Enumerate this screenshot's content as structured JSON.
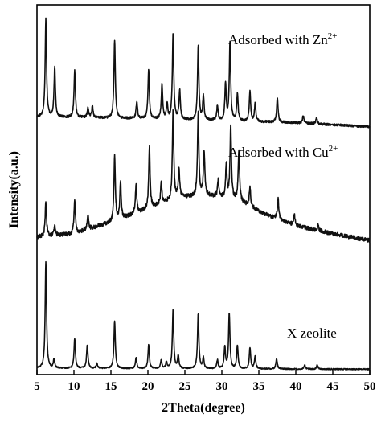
{
  "chart_data": {
    "type": "line",
    "title": "",
    "xlabel": "2Theta(degree)",
    "ylabel": "Intensity(a.u.)",
    "xlim": [
      5,
      50
    ],
    "x_ticks": [
      "5",
      "10",
      "15",
      "20",
      "25",
      "30",
      "35",
      "40",
      "45",
      "50"
    ],
    "y_ticks": [],
    "grid": false,
    "legend": "none",
    "series": [
      {
        "name_parts": [
          "Adsorbed with Zn",
          "2+"
        ],
        "baseline": [
          [
            5,
            0.12
          ],
          [
            20,
            0.1
          ],
          [
            30,
            0.08
          ],
          [
            40,
            0.06
          ],
          [
            50,
            0.02
          ]
        ],
        "peaks": [
          [
            6.2,
            1.0
          ],
          [
            7.4,
            0.5
          ],
          [
            10.1,
            0.48
          ],
          [
            11.9,
            0.1
          ],
          [
            12.5,
            0.12
          ],
          [
            15.5,
            0.8
          ],
          [
            18.5,
            0.18
          ],
          [
            20.1,
            0.5
          ],
          [
            21.9,
            0.35
          ],
          [
            22.6,
            0.15
          ],
          [
            23.4,
            0.88
          ],
          [
            24.3,
            0.3
          ],
          [
            26.8,
            0.75
          ],
          [
            27.5,
            0.25
          ],
          [
            29.4,
            0.15
          ],
          [
            30.5,
            0.38
          ],
          [
            31.1,
            0.8
          ],
          [
            32.1,
            0.28
          ],
          [
            33.8,
            0.3
          ],
          [
            34.5,
            0.18
          ],
          [
            37.5,
            0.25
          ],
          [
            41.0,
            0.08
          ],
          [
            42.8,
            0.06
          ]
        ]
      },
      {
        "name_parts": [
          "Adsorbed with Cu",
          "2+"
        ],
        "baseline": [
          [
            5,
            0.05
          ],
          [
            10,
            0.08
          ],
          [
            15,
            0.18
          ],
          [
            20,
            0.3
          ],
          [
            24,
            0.4
          ],
          [
            28,
            0.42
          ],
          [
            32,
            0.38
          ],
          [
            36,
            0.25
          ],
          [
            40,
            0.15
          ],
          [
            45,
            0.08
          ],
          [
            50,
            0.02
          ]
        ],
        "peaks": [
          [
            6.2,
            0.3
          ],
          [
            7.4,
            0.08
          ],
          [
            10.1,
            0.3
          ],
          [
            11.9,
            0.12
          ],
          [
            15.5,
            0.58
          ],
          [
            16.3,
            0.32
          ],
          [
            18.4,
            0.25
          ],
          [
            20.2,
            0.55
          ],
          [
            21.8,
            0.18
          ],
          [
            23.4,
            0.78
          ],
          [
            24.2,
            0.25
          ],
          [
            26.8,
            0.75
          ],
          [
            27.6,
            0.4
          ],
          [
            29.5,
            0.15
          ],
          [
            30.6,
            0.3
          ],
          [
            31.2,
            0.65
          ],
          [
            32.3,
            0.45
          ],
          [
            33.8,
            0.18
          ],
          [
            37.6,
            0.18
          ],
          [
            39.8,
            0.1
          ],
          [
            43.0,
            0.05
          ]
        ]
      },
      {
        "name": "X zeolite",
        "baseline": [
          [
            5,
            0.03
          ],
          [
            50,
            0.02
          ]
        ],
        "peaks": [
          [
            6.2,
            1.0
          ],
          [
            7.3,
            0.08
          ],
          [
            10.1,
            0.28
          ],
          [
            11.8,
            0.22
          ],
          [
            13.1,
            0.05
          ],
          [
            15.5,
            0.45
          ],
          [
            18.4,
            0.1
          ],
          [
            20.1,
            0.22
          ],
          [
            21.8,
            0.08
          ],
          [
            22.5,
            0.06
          ],
          [
            23.4,
            0.55
          ],
          [
            24.1,
            0.12
          ],
          [
            26.8,
            0.52
          ],
          [
            27.5,
            0.1
          ],
          [
            29.4,
            0.08
          ],
          [
            30.4,
            0.2
          ],
          [
            31.0,
            0.52
          ],
          [
            32.1,
            0.22
          ],
          [
            33.8,
            0.2
          ],
          [
            34.5,
            0.12
          ],
          [
            37.4,
            0.1
          ],
          [
            41.2,
            0.04
          ],
          [
            42.9,
            0.04
          ]
        ]
      }
    ]
  }
}
